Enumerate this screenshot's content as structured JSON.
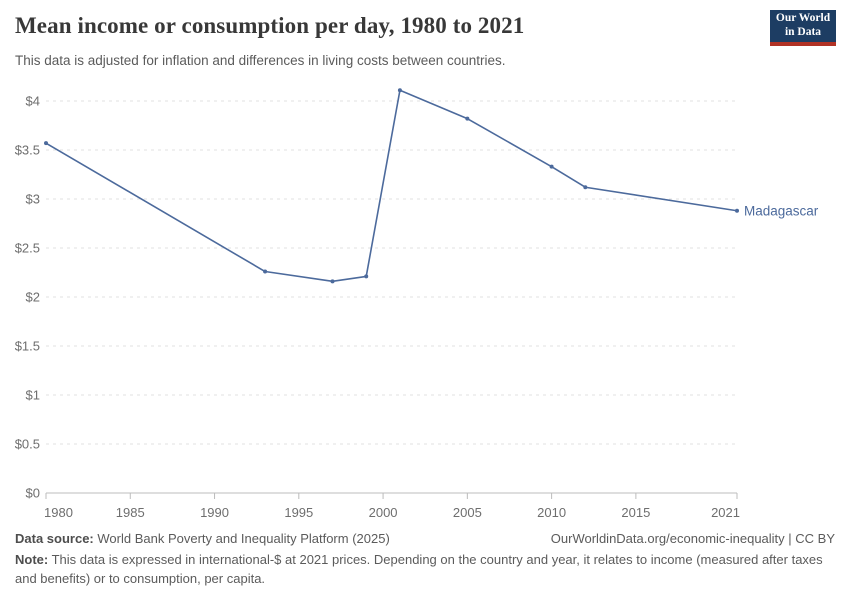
{
  "header": {
    "title": "Mean income or consumption per day, 1980 to 2021",
    "subtitle": "This data is adjusted for inflation and differences in living costs between countries.",
    "logo": {
      "line1": "Our World",
      "line2": "in Data"
    }
  },
  "chart_data": {
    "type": "line",
    "title": "Mean income or consumption per day, 1980 to 2021",
    "x": [
      1980,
      1993,
      1997,
      1999,
      2001,
      2005,
      2010,
      2012,
      2021
    ],
    "series": [
      {
        "name": "Madagascar",
        "values": [
          3.57,
          2.26,
          2.16,
          2.21,
          4.11,
          3.82,
          3.33,
          3.12,
          2.88
        ]
      }
    ],
    "entity_label": "Madagascar",
    "x_ticks": [
      1980,
      1985,
      1990,
      1995,
      2000,
      2005,
      2010,
      2015,
      2021
    ],
    "y_ticks": [
      0,
      0.5,
      1,
      1.5,
      2,
      2.5,
      3,
      3.5,
      4
    ],
    "y_tick_prefix": "$",
    "xlim": [
      1980,
      2021
    ],
    "ylim": [
      0,
      4
    ],
    "xlabel": "",
    "ylabel": "",
    "grid": "horizontal-dashed",
    "legend_position": "end-of-line-label"
  },
  "footer": {
    "data_source_label": "Data source:",
    "data_source": "World Bank Poverty and Inequality Platform (2025)",
    "citation": "OurWorldinData.org/economic-inequality | CC BY",
    "note_label": "Note:",
    "note": "This data is expressed in international-$ at 2021 prices. Depending on the country and year, it relates to income (measured after taxes and benefits) or to consumption, per capita."
  },
  "colors": {
    "line": "#4C6A9C",
    "logo_bg": "#1d3d63",
    "logo_bar": "#b13225",
    "grid": "#e0e0e0",
    "axis": "#bcbcbc",
    "tick_text": "#6e6e6e"
  }
}
